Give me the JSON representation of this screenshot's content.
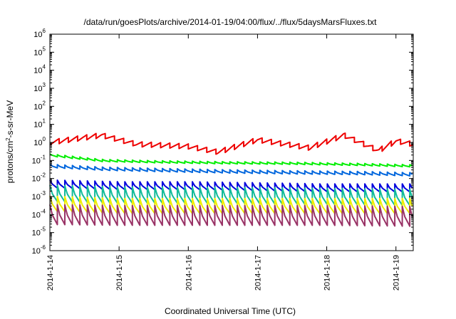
{
  "chart_data": {
    "type": "line",
    "title": "/data/run/goesPlots/archive/2014-01-19/04:00/flux/../flux/5daysMarsFluxes.txt",
    "xlabel": "Coordinated Universal Time (UTC)",
    "ylabel": {
      "prefix": "protons/cm",
      "sup": "2",
      "suffix": "-s-sr-MeV"
    },
    "yscale": "log",
    "ylim": [
      1e-06,
      1000000.0
    ],
    "xlim": [
      "2014-01-14T00:00",
      "2014-01-19T06:00"
    ],
    "xticks": [
      "2014-1-14",
      "2014-1-15",
      "2014-1-16",
      "2014-1-17",
      "2014-1-18",
      "2014-1-19"
    ],
    "yticks": [
      {
        "base": "10",
        "exp": "-6"
      },
      {
        "base": "10",
        "exp": "-5"
      },
      {
        "base": "10",
        "exp": "-4"
      },
      {
        "base": "10",
        "exp": "-3"
      },
      {
        "base": "10",
        "exp": "-2"
      },
      {
        "base": "10",
        "exp": "-1"
      },
      {
        "base": "10",
        "exp": "0"
      },
      {
        "base": "10",
        "exp": "1"
      },
      {
        "base": "10",
        "exp": "2"
      },
      {
        "base": "10",
        "exp": "3"
      },
      {
        "base": "10",
        "exp": "4"
      },
      {
        "base": "10",
        "exp": "5"
      },
      {
        "base": "10",
        "exp": "6"
      }
    ],
    "grid": false,
    "legend": "none",
    "series": [
      {
        "color": "#ee0000",
        "style": "sawtooth",
        "points": [
          [
            "2014-01-14T00:00",
            1.0
          ],
          [
            "2014-01-14T18:00",
            2.5
          ],
          [
            "2014-01-15T06:00",
            0.8
          ],
          [
            "2014-01-16T00:00",
            0.6
          ],
          [
            "2014-01-16T10:00",
            0.3
          ],
          [
            "2014-01-16T12:00",
            0.35
          ],
          [
            "2014-01-17T00:00",
            1.4
          ],
          [
            "2014-01-17T18:00",
            0.5
          ],
          [
            "2014-01-18T06:00",
            2.5
          ],
          [
            "2014-01-18T18:00",
            0.35
          ],
          [
            "2014-01-19T00:00",
            1.2
          ],
          [
            "2014-01-19T06:00",
            0.8
          ]
        ]
      },
      {
        "color": "#00ee00",
        "style": "sawtooth",
        "points": [
          [
            "2014-01-14T00:00",
            0.2
          ],
          [
            "2014-01-14T06:00",
            0.16
          ],
          [
            "2014-01-14T18:00",
            0.1
          ],
          [
            "2014-01-15T12:00",
            0.085
          ],
          [
            "2014-01-16T12:00",
            0.075
          ],
          [
            "2014-01-17T12:00",
            0.07
          ],
          [
            "2014-01-18T12:00",
            0.06
          ],
          [
            "2014-01-19T06:00",
            0.05
          ]
        ]
      },
      {
        "color": "#0066dd",
        "style": "sawtooth",
        "points": [
          [
            "2014-01-14T00:00",
            0.05
          ],
          [
            "2014-01-14T18:00",
            0.035
          ],
          [
            "2014-01-15T12:00",
            0.03
          ],
          [
            "2014-01-16T12:00",
            0.025
          ],
          [
            "2014-01-17T12:00",
            0.022
          ],
          [
            "2014-01-18T12:00",
            0.02
          ],
          [
            "2014-01-19T06:00",
            0.017
          ]
        ]
      },
      {
        "color": "#0000dd",
        "style": "sawtooth",
        "points": [
          [
            "2014-01-14T00:00",
            0.005
          ],
          [
            "2014-01-15T00:00",
            0.004
          ],
          [
            "2014-01-16T00:00",
            0.004
          ],
          [
            "2014-01-17T00:00",
            0.0035
          ],
          [
            "2014-01-18T00:00",
            0.003
          ],
          [
            "2014-01-19T06:00",
            0.003
          ]
        ]
      },
      {
        "color": "#11bb99",
        "style": "sawtooth",
        "points": [
          [
            "2014-01-14T00:00",
            0.0015
          ],
          [
            "2014-01-15T00:00",
            0.0012
          ],
          [
            "2014-01-16T00:00",
            0.0012
          ],
          [
            "2014-01-17T00:00",
            0.0011
          ],
          [
            "2014-01-18T00:00",
            0.001
          ],
          [
            "2014-01-19T06:00",
            0.0009
          ]
        ]
      },
      {
        "color": "#eeee00",
        "style": "sawtooth",
        "points": [
          [
            "2014-01-14T00:00",
            0.0004
          ],
          [
            "2014-01-15T00:00",
            0.0003
          ],
          [
            "2014-01-16T00:00",
            0.0003
          ],
          [
            "2014-01-17T00:00",
            0.0003
          ],
          [
            "2014-01-18T00:00",
            0.0003
          ],
          [
            "2014-01-19T06:00",
            0.0003
          ]
        ]
      },
      {
        "color": "#993366",
        "style": "sawtooth",
        "points": [
          [
            "2014-01-14T00:00",
            0.0001
          ],
          [
            "2014-01-15T00:00",
            9e-05
          ],
          [
            "2014-01-16T00:00",
            9e-05
          ],
          [
            "2014-01-17T00:00",
            9e-05
          ],
          [
            "2014-01-18T00:00",
            9e-05
          ],
          [
            "2014-01-19T06:00",
            8e-05
          ]
        ]
      }
    ]
  }
}
